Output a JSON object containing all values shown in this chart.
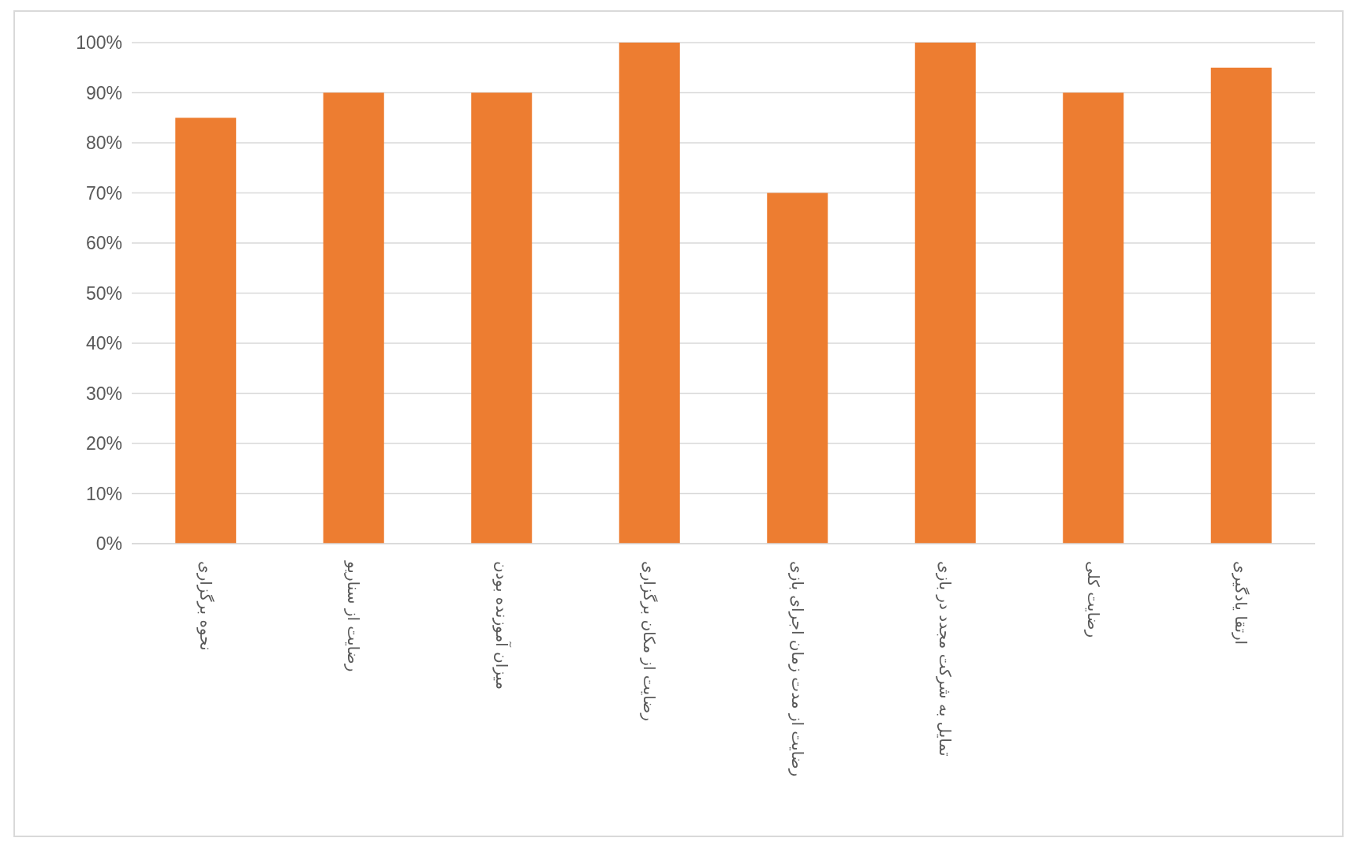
{
  "chart_data": {
    "type": "bar",
    "categories": [
      "نحوه برگزاری",
      "رضایت از سناریو",
      "میزان آموزنده بودن",
      "رضایت از مکان برگزاری",
      "رضایت از مدت زمان اجرای بازی",
      "تمایل به شرکت مجدد در بازی",
      "رضایت کلی",
      "ارتقا یادگیری"
    ],
    "values": [
      85,
      90,
      90,
      100,
      70,
      100,
      90,
      95
    ],
    "color": "#ed7d31",
    "ylim": [
      0,
      100
    ],
    "yticks": [
      {
        "value": 0,
        "label": "0%"
      },
      {
        "value": 10,
        "label": "10%"
      },
      {
        "value": 20,
        "label": "20%"
      },
      {
        "value": 30,
        "label": "30%"
      },
      {
        "value": 40,
        "label": "40%"
      },
      {
        "value": 50,
        "label": "50%"
      },
      {
        "value": 60,
        "label": "60%"
      },
      {
        "value": 70,
        "label": "70%"
      },
      {
        "value": 80,
        "label": "80%"
      },
      {
        "value": 90,
        "label": "90%"
      },
      {
        "value": 100,
        "label": "100%"
      }
    ],
    "grid": "y"
  }
}
